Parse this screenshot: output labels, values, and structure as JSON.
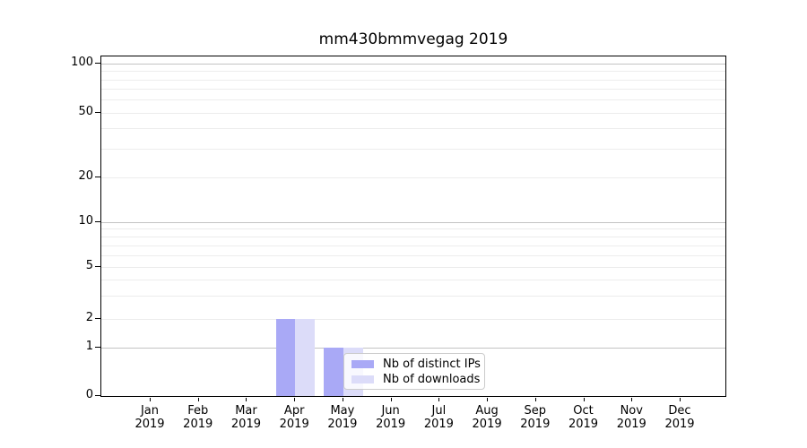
{
  "figure": {
    "title": "mm430bmmvegag 2019"
  },
  "chart_data": {
    "type": "bar",
    "title": "mm430bmmvegag 2019",
    "categories": [
      "Jan",
      "Feb",
      "Mar",
      "Apr",
      "May",
      "Jun",
      "Jul",
      "Aug",
      "Sep",
      "Oct",
      "Nov",
      "Dec"
    ],
    "x_year_label": "2019",
    "series": [
      {
        "name": "Nb of distinct IPs",
        "color": "#a9a9f6",
        "values": [
          0,
          0,
          0,
          2,
          1,
          0,
          0,
          0,
          0,
          0,
          0,
          0
        ]
      },
      {
        "name": "Nb of downloads",
        "color": "#dcdcf9",
        "values": [
          0,
          0,
          0,
          2,
          1,
          0,
          0,
          0,
          0,
          0,
          0,
          0
        ]
      }
    ],
    "y_axis": {
      "scale": "symlog",
      "ticks": [
        0,
        1,
        2,
        5,
        10,
        20,
        50,
        100
      ],
      "major_gridlines": [
        1,
        10,
        100
      ],
      "minor_gridlines": [
        2,
        3,
        4,
        5,
        6,
        7,
        8,
        9,
        20,
        30,
        40,
        50,
        60,
        70,
        80,
        90
      ],
      "range": [
        0,
        120
      ]
    },
    "x_axis": {
      "label": "",
      "tick_count": 12
    },
    "grid": "horizontal",
    "legend_position": "lower-center-inside"
  },
  "colors": {
    "bar_distinct_ips": "#a9a9f6",
    "bar_downloads": "#dcdcf9",
    "grid_major": "#c3c3c3",
    "grid_minor": "#ececec",
    "spine": "#000000",
    "legend_border": "#cccccc"
  }
}
